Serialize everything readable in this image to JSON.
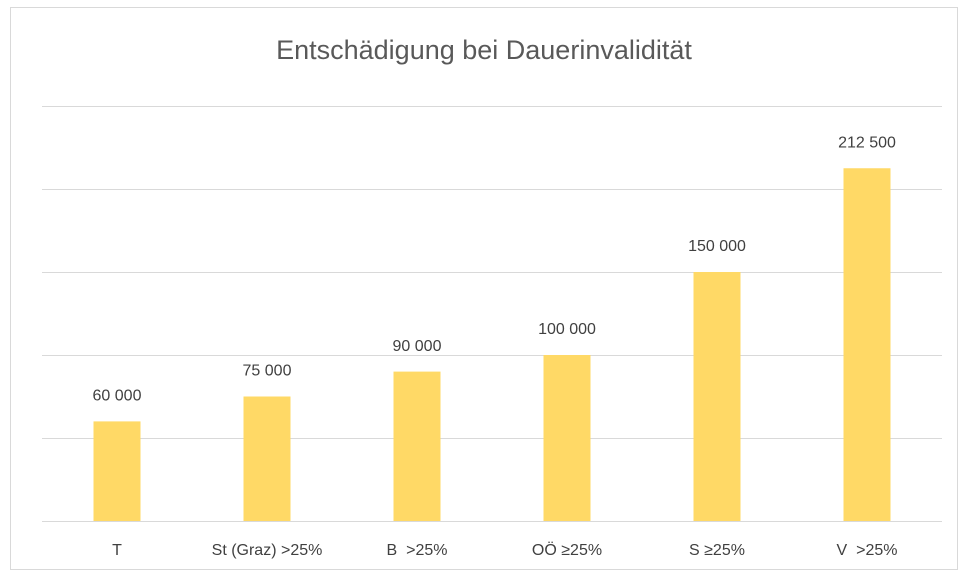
{
  "chart_data": {
    "type": "bar",
    "title": "Entschädigung bei Dauerinvalidität",
    "categories": [
      "T",
      "St (Graz) >25%",
      "B  >25%",
      "OÖ ≥25%",
      "S ≥25%",
      "V  >25%"
    ],
    "values": [
      60000,
      75000,
      90000,
      100000,
      150000,
      212500
    ],
    "value_labels": [
      "60 000",
      "75 000",
      "90 000",
      "100 000",
      "150 000",
      "212 500"
    ],
    "color": "#ffd966",
    "ylim": [
      0,
      250000
    ],
    "yticks": [
      0,
      50000,
      100000,
      150000,
      200000,
      250000
    ],
    "grid": true
  }
}
